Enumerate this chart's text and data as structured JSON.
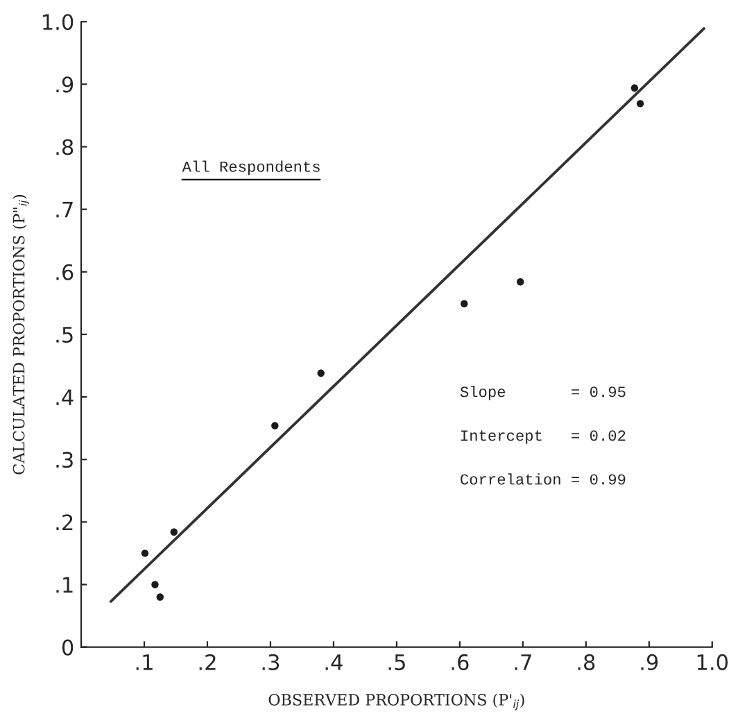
{
  "chart_data": {
    "type": "scatter",
    "xlabel": "OBSERVED PROPORTIONS (P'$_{ij}$)",
    "ylabel": "CALCULATED PROPORTIONS (P\"$_{ij}$)",
    "annotations": [
      "All Respondents",
      "Slope       = 0.95",
      "Intercept   = 0.02",
      "Correlation = 0.99"
    ],
    "series": [
      {
        "color": "#1a1a1a",
        "marker": "circle",
        "x": [
          0.101,
          0.117,
          0.125,
          0.147,
          0.307,
          0.38,
          0.607,
          0.696,
          0.877,
          0.886
        ],
        "values": [
          0.15,
          0.1,
          0.08,
          0.184,
          0.354,
          0.438,
          0.549,
          0.584,
          0.894,
          0.869
        ]
      },
      {
        "type": "line",
        "marker": "none",
        "color": "#333333",
        "x": [
          0.047,
          0.987
        ],
        "values": [
          0.073,
          0.989
        ]
      }
    ],
    "xlim": [
      0,
      1.0
    ],
    "ylim": [
      0,
      1.0
    ],
    "xticks": [
      {
        "value": 0.1,
        "label": ".1"
      },
      {
        "value": 0.2,
        "label": ".2"
      },
      {
        "value": 0.3,
        "label": ".3"
      },
      {
        "value": 0.4,
        "label": ".4"
      },
      {
        "value": 0.5,
        "label": ".5"
      },
      {
        "value": 0.6,
        "label": ".6"
      },
      {
        "value": 0.7,
        "label": ".7"
      },
      {
        "value": 0.8,
        "label": ".8"
      },
      {
        "value": 0.9,
        "label": ".9"
      },
      {
        "value": 1.0,
        "label": "1.0"
      }
    ],
    "yticks": [
      0,
      {
        "value": 0.1,
        "label": ".1"
      },
      {
        "value": 0.2,
        "label": ".2"
      },
      {
        "value": 0.3,
        "label": ".3"
      },
      {
        "value": 0.4,
        "label": ".4"
      },
      {
        "value": 0.5,
        "label": ".5"
      },
      {
        "value": 0.6,
        "label": ".6"
      },
      {
        "value": 0.7,
        "label": ".7"
      },
      {
        "value": 0.8,
        "label": ".8"
      },
      {
        "value": 0.9,
        "label": ".9"
      },
      {
        "value": 1.0,
        "label": "1.0"
      }
    ],
    "grid": false,
    "legend": false
  }
}
